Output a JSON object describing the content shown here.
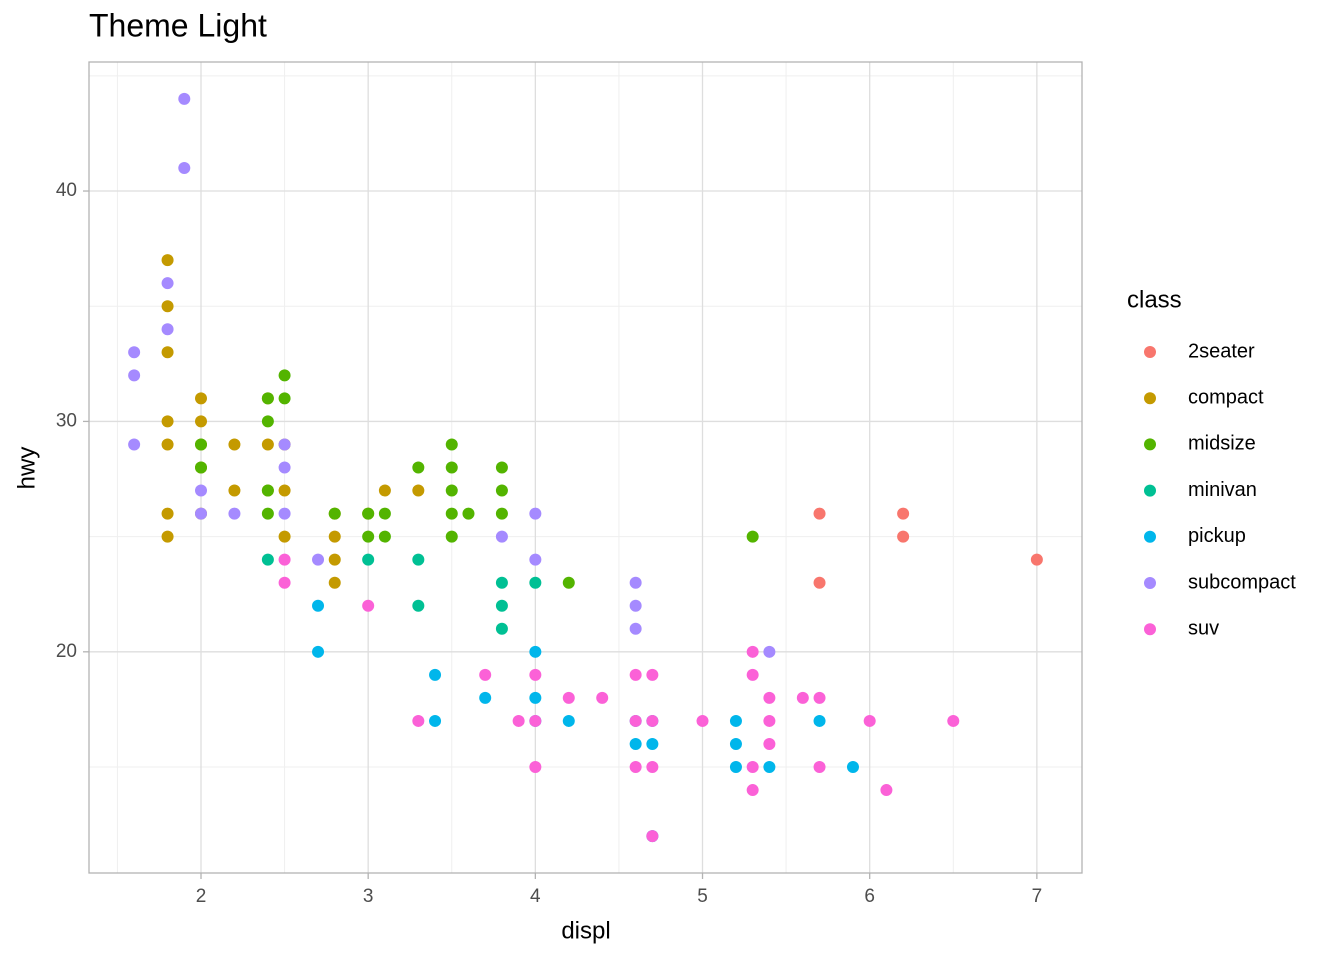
{
  "chart_data": {
    "type": "scatter",
    "title": "Theme Light",
    "x_label": "displ",
    "y_label": "hwy",
    "legend_title": "class",
    "legend_position": "right",
    "grid": true,
    "xlim": [
      1.33,
      7.27
    ],
    "ylim": [
      10.4,
      45.6
    ],
    "xticks": [
      2,
      3,
      4,
      5,
      6,
      7
    ],
    "yticks": [
      20,
      30,
      40
    ],
    "minor_xticks": [
      1.5,
      2.5,
      3.5,
      4.5,
      5.5,
      6.5
    ],
    "minor_yticks": [
      15,
      25,
      35,
      45
    ],
    "series": [
      {
        "name": "2seater",
        "color": "#F8766D",
        "x": [
          5.7,
          5.7,
          6.2,
          6.2,
          7
        ],
        "values": [
          26,
          23,
          26,
          25,
          24
        ]
      },
      {
        "name": "compact",
        "color": "#C49A00",
        "x": [
          1.8,
          1.8,
          1.8,
          1.8,
          1.8,
          1.8,
          1.8,
          2,
          2,
          2,
          2,
          2,
          2.2,
          2.2,
          2.4,
          2.4,
          2.4,
          2.5,
          2.5,
          2.5,
          2.8,
          2.8,
          2.8,
          2.8,
          3,
          3.1,
          3.3
        ],
        "values": [
          37,
          35,
          33,
          30,
          29,
          26,
          25,
          31,
          30,
          29,
          28,
          26,
          29,
          27,
          31,
          29,
          27,
          29,
          27,
          25,
          26,
          25,
          24,
          23,
          26,
          27,
          27
        ]
      },
      {
        "name": "midsize",
        "color": "#53B400",
        "x": [
          2,
          2,
          2.4,
          2.4,
          2.4,
          2.4,
          2.5,
          2.5,
          2.8,
          3,
          3,
          3.1,
          3.1,
          3.3,
          3.5,
          3.5,
          3.5,
          3.5,
          3.5,
          3.6,
          3.8,
          3.8,
          3.8,
          4.2,
          5.3
        ],
        "values": [
          29,
          28,
          31,
          30,
          27,
          26,
          32,
          31,
          26,
          26,
          25,
          26,
          25,
          28,
          29,
          28,
          27,
          26,
          25,
          26,
          28,
          27,
          26,
          23,
          25
        ]
      },
      {
        "name": "minivan",
        "color": "#00C094",
        "x": [
          2.4,
          3,
          3.3,
          3.3,
          3.8,
          3.8,
          3.8,
          4
        ],
        "values": [
          24,
          24,
          24,
          22,
          23,
          22,
          21,
          23
        ]
      },
      {
        "name": "pickup",
        "color": "#00B6EB",
        "x": [
          2.7,
          2.7,
          3.4,
          3.4,
          3.7,
          4,
          4,
          4,
          4.2,
          4.6,
          4.6,
          4.7,
          4.7,
          4.7,
          5.2,
          5.2,
          5.2,
          5.4,
          5.7,
          5.9
        ],
        "values": [
          22,
          20,
          19,
          17,
          18,
          20,
          18,
          17,
          17,
          17,
          16,
          17,
          16,
          12,
          17,
          16,
          15,
          15,
          17,
          15
        ]
      },
      {
        "name": "subcompact",
        "color": "#A58AFF",
        "x": [
          1.6,
          1.6,
          1.6,
          1.8,
          1.8,
          1.9,
          1.9,
          2,
          2,
          2.2,
          2.5,
          2.5,
          2.5,
          2.7,
          3.8,
          4,
          4,
          4.6,
          4.6,
          4.6,
          5.4
        ],
        "values": [
          33,
          32,
          29,
          36,
          34,
          44,
          41,
          27,
          26,
          26,
          29,
          28,
          26,
          24,
          25,
          26,
          24,
          23,
          22,
          21,
          20
        ]
      },
      {
        "name": "suv",
        "color": "#FB61D7",
        "x": [
          2.5,
          2.5,
          3,
          3.3,
          3.7,
          3.9,
          4,
          4,
          4,
          4.2,
          4.4,
          4.6,
          4.6,
          4.6,
          4.7,
          4.7,
          4.7,
          4.7,
          5,
          5.3,
          5.3,
          5.3,
          5.3,
          5.4,
          5.4,
          5.4,
          5.6,
          5.7,
          5.7,
          6,
          6.1,
          6.5
        ],
        "values": [
          24,
          23,
          22,
          17,
          19,
          17,
          19,
          17,
          15,
          18,
          18,
          19,
          17,
          15,
          19,
          17,
          15,
          12,
          17,
          20,
          19,
          15,
          14,
          18,
          17,
          16,
          18,
          18,
          15,
          17,
          14,
          17
        ]
      }
    ]
  }
}
